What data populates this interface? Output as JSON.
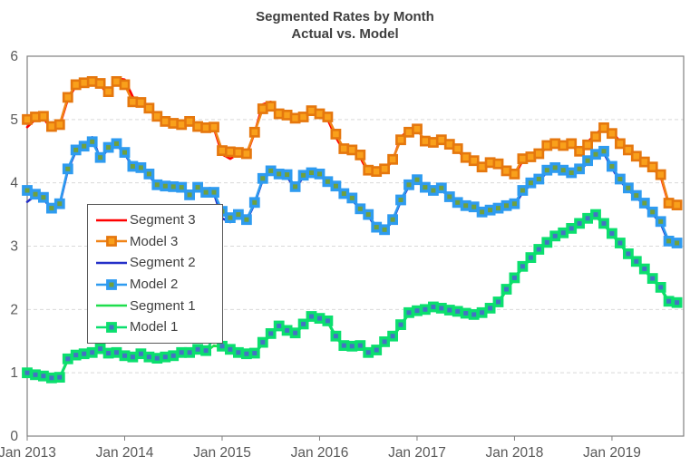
{
  "title": {
    "line1": "Segmented Rates by Month",
    "line2": "Actual vs. Model"
  },
  "legend": {
    "items": [
      "Segment 3",
      "Model 3",
      "Segment 2",
      "Model 2",
      "Segment 1",
      "Model 1"
    ]
  },
  "colors": {
    "title_text": "#3f3f3f",
    "axis_text": "#595959",
    "frame": "#808080",
    "gridline": "#d9d9d9",
    "segment3": "#ff0000",
    "model3_line": "#f08418",
    "model3_marker_fill": "#f9a01b",
    "model3_marker_stroke": "#e5770e",
    "segment2": "#2430c8",
    "model2_line": "#2e9bf0",
    "model2_marker_fill": "#70a03c",
    "segment1": "#1fde4c",
    "model1_line": "#0bdf6e",
    "model1_marker_fill": "#4472c4"
  },
  "chart_data": {
    "type": "line",
    "title": "Segmented Rates by Month",
    "subtitle": "Actual vs. Model",
    "xlabel": "",
    "ylabel": "",
    "ylim": [
      0,
      6
    ],
    "yticks": [
      0,
      1,
      2,
      3,
      4,
      5,
      6
    ],
    "x_tick_labels": [
      "Jan 2013",
      "Jan 2014",
      "Jan 2015",
      "Jan 2016",
      "Jan 2017",
      "Jan 2018",
      "Jan 2019"
    ],
    "grid": "horizontal-dashed",
    "legend_position": "middle-left, boxed",
    "x": [
      "Jan 2013",
      "Feb 2013",
      "Mar 2013",
      "Apr 2013",
      "May 2013",
      "Jun 2013",
      "Jul 2013",
      "Aug 2013",
      "Sep 2013",
      "Oct 2013",
      "Nov 2013",
      "Dec 2013",
      "Jan 2014",
      "Feb 2014",
      "Mar 2014",
      "Apr 2014",
      "May 2014",
      "Jun 2014",
      "Jul 2014",
      "Aug 2014",
      "Sep 2014",
      "Oct 2014",
      "Nov 2014",
      "Dec 2014",
      "Jan 2015",
      "Feb 2015",
      "Mar 2015",
      "Apr 2015",
      "May 2015",
      "Jun 2015",
      "Jul 2015",
      "Aug 2015",
      "Sep 2015",
      "Oct 2015",
      "Nov 2015",
      "Dec 2015",
      "Jan 2016",
      "Feb 2016",
      "Mar 2016",
      "Apr 2016",
      "May 2016",
      "Jun 2016",
      "Jul 2016",
      "Aug 2016",
      "Sep 2016",
      "Oct 2016",
      "Nov 2016",
      "Dec 2016",
      "Jan 2017",
      "Feb 2017",
      "Mar 2017",
      "Apr 2017",
      "May 2017",
      "Jun 2017",
      "Jul 2017",
      "Aug 2017",
      "Sep 2017",
      "Oct 2017",
      "Nov 2017",
      "Dec 2017",
      "Jan 2018",
      "Feb 2018",
      "Mar 2018",
      "Apr 2018",
      "May 2018",
      "Jun 2018",
      "Jul 2018",
      "Aug 2018",
      "Sep 2018",
      "Oct 2018",
      "Nov 2018",
      "Dec 2018",
      "Jan 2019",
      "Feb 2019",
      "Mar 2019",
      "Apr 2019",
      "May 2019",
      "Jun 2019",
      "Jul 2019",
      "Aug 2019",
      "Sep 2019"
    ],
    "series": [
      {
        "name": "Segment 3",
        "role": "segment",
        "color": "#ff0000",
        "values": [
          4.88,
          5.0,
          5.02,
          4.85,
          4.9,
          5.32,
          5.53,
          5.57,
          5.6,
          5.55,
          5.38,
          5.65,
          5.63,
          5.36,
          5.25,
          5.16,
          5.03,
          4.95,
          4.92,
          4.9,
          4.95,
          4.87,
          4.85,
          4.86,
          4.45,
          4.38,
          4.46,
          4.44,
          4.79,
          5.24,
          5.28,
          5.06,
          5.05,
          5.0,
          5.02,
          5.12,
          5.11,
          5.0,
          4.72,
          4.5,
          4.5,
          4.4,
          4.16,
          4.15,
          4.2,
          4.35,
          4.72,
          4.84,
          4.88,
          4.62,
          4.62,
          4.66,
          4.59,
          4.52,
          4.37,
          4.33,
          4.23,
          4.3,
          4.28,
          4.16,
          4.11,
          4.35,
          4.38,
          4.44,
          4.57,
          4.6,
          4.57,
          4.6,
          4.47,
          4.65,
          4.76,
          4.89,
          4.81,
          4.65,
          4.53,
          4.4,
          4.31,
          4.23,
          4.1,
          3.66,
          3.63
        ]
      },
      {
        "name": "Model 3",
        "role": "model",
        "color": "#f08418",
        "marker": {
          "fill": "#f9a01b",
          "stroke": "#e5770e"
        },
        "values": [
          5.0,
          5.04,
          5.05,
          4.89,
          4.92,
          5.35,
          5.55,
          5.58,
          5.6,
          5.57,
          5.44,
          5.6,
          5.55,
          5.28,
          5.27,
          5.18,
          5.05,
          4.97,
          4.94,
          4.92,
          4.97,
          4.89,
          4.87,
          4.88,
          4.51,
          4.49,
          4.48,
          4.46,
          4.8,
          5.17,
          5.21,
          5.09,
          5.07,
          5.02,
          5.04,
          5.14,
          5.09,
          5.04,
          4.77,
          4.54,
          4.52,
          4.44,
          4.2,
          4.18,
          4.22,
          4.37,
          4.68,
          4.8,
          4.85,
          4.66,
          4.64,
          4.68,
          4.61,
          4.54,
          4.4,
          4.35,
          4.25,
          4.32,
          4.3,
          4.19,
          4.14,
          4.38,
          4.41,
          4.46,
          4.59,
          4.62,
          4.59,
          4.62,
          4.5,
          4.6,
          4.73,
          4.87,
          4.78,
          4.62,
          4.52,
          4.42,
          4.33,
          4.25,
          4.13,
          3.68,
          3.65
        ]
      },
      {
        "name": "Segment 2",
        "role": "segment",
        "color": "#2430c8",
        "values": [
          3.7,
          3.8,
          3.75,
          3.58,
          3.65,
          4.2,
          4.5,
          4.56,
          4.72,
          4.38,
          4.54,
          4.6,
          4.46,
          4.25,
          4.22,
          4.12,
          3.95,
          3.93,
          3.92,
          3.91,
          3.79,
          3.91,
          3.83,
          3.83,
          3.44,
          3.38,
          3.47,
          3.4,
          3.67,
          4.05,
          4.17,
          4.12,
          4.1,
          3.9,
          4.1,
          4.14,
          4.12,
          4.0,
          3.93,
          3.81,
          3.74,
          3.57,
          3.48,
          3.28,
          3.24,
          3.4,
          3.71,
          3.95,
          4.03,
          3.91,
          3.86,
          3.9,
          3.76,
          3.67,
          3.62,
          3.6,
          3.52,
          3.55,
          3.58,
          3.62,
          3.64,
          3.85,
          3.97,
          4.03,
          4.17,
          4.21,
          4.17,
          4.13,
          4.19,
          4.32,
          4.42,
          4.47,
          4.23,
          4.03,
          3.89,
          3.77,
          3.65,
          3.51,
          3.36,
          3.05,
          3.02
        ]
      },
      {
        "name": "Model 2",
        "role": "model",
        "color": "#2e9bf0",
        "marker": {
          "fill": "#70a03c",
          "stroke": "#2e9bf0"
        },
        "values": [
          3.88,
          3.82,
          3.77,
          3.6,
          3.67,
          4.22,
          4.52,
          4.58,
          4.65,
          4.4,
          4.56,
          4.62,
          4.48,
          4.26,
          4.24,
          4.14,
          3.97,
          3.95,
          3.94,
          3.93,
          3.81,
          3.93,
          3.85,
          3.85,
          3.55,
          3.45,
          3.5,
          3.42,
          3.69,
          4.07,
          4.19,
          4.14,
          4.13,
          3.94,
          4.12,
          4.16,
          4.14,
          4.02,
          3.95,
          3.83,
          3.76,
          3.59,
          3.5,
          3.3,
          3.26,
          3.42,
          3.73,
          3.97,
          4.05,
          3.93,
          3.88,
          3.92,
          3.78,
          3.69,
          3.64,
          3.62,
          3.54,
          3.57,
          3.6,
          3.64,
          3.67,
          3.88,
          4.0,
          4.06,
          4.2,
          4.24,
          4.2,
          4.16,
          4.22,
          4.35,
          4.45,
          4.5,
          4.26,
          4.06,
          3.92,
          3.8,
          3.68,
          3.54,
          3.39,
          3.08,
          3.05
        ]
      },
      {
        "name": "Segment 1",
        "role": "segment",
        "color": "#1fde4c",
        "values": [
          0.98,
          0.95,
          0.93,
          0.9,
          0.91,
          1.2,
          1.26,
          1.28,
          1.3,
          1.36,
          1.29,
          1.3,
          1.25,
          1.23,
          1.28,
          1.23,
          1.21,
          1.23,
          1.25,
          1.3,
          1.3,
          1.35,
          1.33,
          1.43,
          1.4,
          1.35,
          1.3,
          1.28,
          1.29,
          1.46,
          1.6,
          1.72,
          1.65,
          1.61,
          1.75,
          1.87,
          1.84,
          1.8,
          1.56,
          1.41,
          1.4,
          1.41,
          1.3,
          1.34,
          1.47,
          1.56,
          1.74,
          1.93,
          1.96,
          1.98,
          2.02,
          2.0,
          1.97,
          1.95,
          1.92,
          1.9,
          1.93,
          2.0,
          2.1,
          2.3,
          2.48,
          2.66,
          2.8,
          2.93,
          3.04,
          3.14,
          3.19,
          3.26,
          3.34,
          3.42,
          3.47,
          3.34,
          3.18,
          3.03,
          2.86,
          2.74,
          2.62,
          2.47,
          2.33,
          2.11,
          2.09
        ]
      },
      {
        "name": "Model 1",
        "role": "model",
        "color": "#0bdf6e",
        "marker": {
          "fill": "#4472c4",
          "stroke": "#0bdf6e"
        },
        "values": [
          1.0,
          0.97,
          0.95,
          0.92,
          0.93,
          1.22,
          1.28,
          1.3,
          1.32,
          1.38,
          1.31,
          1.32,
          1.27,
          1.25,
          1.3,
          1.25,
          1.23,
          1.25,
          1.27,
          1.32,
          1.32,
          1.37,
          1.35,
          1.55,
          1.42,
          1.37,
          1.32,
          1.3,
          1.31,
          1.48,
          1.62,
          1.74,
          1.67,
          1.63,
          1.77,
          1.89,
          1.86,
          1.82,
          1.58,
          1.43,
          1.42,
          1.43,
          1.32,
          1.36,
          1.49,
          1.58,
          1.76,
          1.95,
          1.98,
          2.0,
          2.04,
          2.02,
          1.99,
          1.97,
          1.94,
          1.92,
          1.95,
          2.02,
          2.12,
          2.32,
          2.5,
          2.68,
          2.82,
          2.95,
          3.06,
          3.16,
          3.21,
          3.28,
          3.36,
          3.44,
          3.5,
          3.36,
          3.2,
          3.05,
          2.88,
          2.76,
          2.64,
          2.49,
          2.35,
          2.13,
          2.11
        ]
      }
    ]
  }
}
